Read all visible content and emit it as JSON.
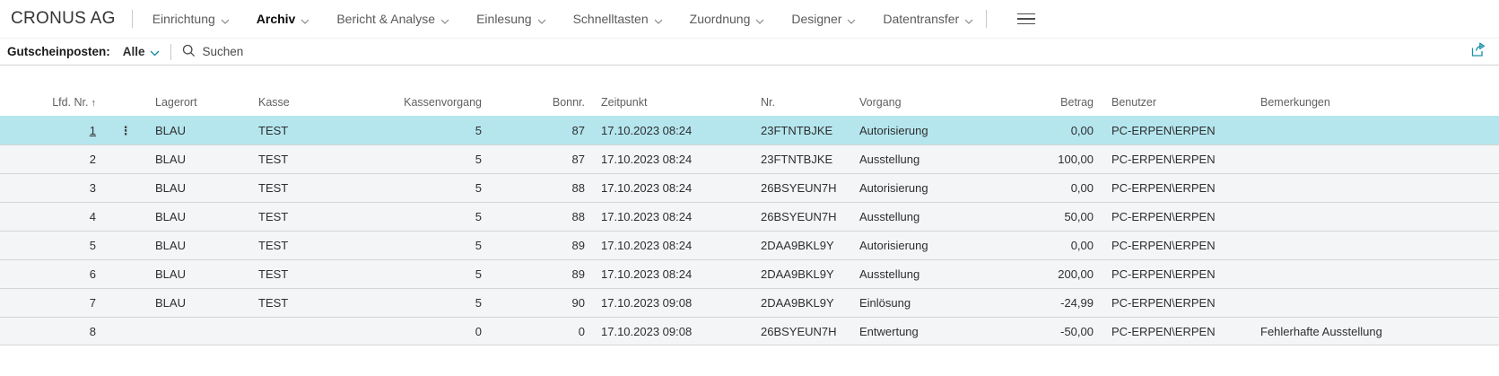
{
  "app": {
    "company_name": "CRONUS AG"
  },
  "menu": {
    "items": [
      {
        "label": "Einrichtung",
        "active": false
      },
      {
        "label": "Archiv",
        "active": true
      },
      {
        "label": "Bericht & Analyse",
        "active": false
      },
      {
        "label": "Einlesung",
        "active": false
      },
      {
        "label": "Schnelltasten",
        "active": false
      },
      {
        "label": "Zuordnung",
        "active": false
      },
      {
        "label": "Designer",
        "active": false
      },
      {
        "label": "Datentransfer",
        "active": false
      }
    ]
  },
  "filter_bar": {
    "caption": "Gutscheinposten:",
    "filter_value": "Alle",
    "search_label": "Suchen"
  },
  "table": {
    "columns": [
      {
        "key": "lfd_nr",
        "label": "Lfd. Nr.",
        "align": "r",
        "sorted": "asc"
      },
      {
        "key": "row_menu",
        "label": "",
        "align": "c"
      },
      {
        "key": "lagerort",
        "label": "Lagerort",
        "align": "l"
      },
      {
        "key": "kasse",
        "label": "Kasse",
        "align": "l"
      },
      {
        "key": "kassenvorgang",
        "label": "Kassenvorgang",
        "align": "r"
      },
      {
        "key": "bonnr",
        "label": "Bonnr.",
        "align": "r"
      },
      {
        "key": "zeitpunkt",
        "label": "Zeitpunkt",
        "align": "l"
      },
      {
        "key": "nr",
        "label": "Nr.",
        "align": "l"
      },
      {
        "key": "vorgang",
        "label": "Vorgang",
        "align": "l"
      },
      {
        "key": "betrag",
        "label": "Betrag",
        "align": "r"
      },
      {
        "key": "benutzer",
        "label": "Benutzer",
        "align": "l"
      },
      {
        "key": "bemerkungen",
        "label": "Bemerkungen",
        "align": "l"
      }
    ],
    "rows": [
      {
        "selected": true,
        "lfd_nr": "1",
        "lagerort": "BLAU",
        "kasse": "TEST",
        "kassenvorgang": "5",
        "bonnr": "87",
        "zeitpunkt": "17.10.2023 08:24",
        "nr": "23FTNTBJKE",
        "vorgang": "Autorisierung",
        "betrag": "0,00",
        "benutzer": "PC-ERPEN\\ERPEN",
        "bemerkungen": ""
      },
      {
        "selected": false,
        "lfd_nr": "2",
        "lagerort": "BLAU",
        "kasse": "TEST",
        "kassenvorgang": "5",
        "bonnr": "87",
        "zeitpunkt": "17.10.2023 08:24",
        "nr": "23FTNTBJKE",
        "vorgang": "Ausstellung",
        "betrag": "100,00",
        "benutzer": "PC-ERPEN\\ERPEN",
        "bemerkungen": ""
      },
      {
        "selected": false,
        "lfd_nr": "3",
        "lagerort": "BLAU",
        "kasse": "TEST",
        "kassenvorgang": "5",
        "bonnr": "88",
        "zeitpunkt": "17.10.2023 08:24",
        "nr": "26BSYEUN7H",
        "vorgang": "Autorisierung",
        "betrag": "0,00",
        "benutzer": "PC-ERPEN\\ERPEN",
        "bemerkungen": ""
      },
      {
        "selected": false,
        "lfd_nr": "4",
        "lagerort": "BLAU",
        "kasse": "TEST",
        "kassenvorgang": "5",
        "bonnr": "88",
        "zeitpunkt": "17.10.2023 08:24",
        "nr": "26BSYEUN7H",
        "vorgang": "Ausstellung",
        "betrag": "50,00",
        "benutzer": "PC-ERPEN\\ERPEN",
        "bemerkungen": ""
      },
      {
        "selected": false,
        "lfd_nr": "5",
        "lagerort": "BLAU",
        "kasse": "TEST",
        "kassenvorgang": "5",
        "bonnr": "89",
        "zeitpunkt": "17.10.2023 08:24",
        "nr": "2DAA9BKL9Y",
        "vorgang": "Autorisierung",
        "betrag": "0,00",
        "benutzer": "PC-ERPEN\\ERPEN",
        "bemerkungen": ""
      },
      {
        "selected": false,
        "lfd_nr": "6",
        "lagerort": "BLAU",
        "kasse": "TEST",
        "kassenvorgang": "5",
        "bonnr": "89",
        "zeitpunkt": "17.10.2023 08:24",
        "nr": "2DAA9BKL9Y",
        "vorgang": "Ausstellung",
        "betrag": "200,00",
        "benutzer": "PC-ERPEN\\ERPEN",
        "bemerkungen": ""
      },
      {
        "selected": false,
        "lfd_nr": "7",
        "lagerort": "BLAU",
        "kasse": "TEST",
        "kassenvorgang": "5",
        "bonnr": "90",
        "zeitpunkt": "17.10.2023 09:08",
        "nr": "2DAA9BKL9Y",
        "vorgang": "Einlösung",
        "betrag": "-24,99",
        "benutzer": "PC-ERPEN\\ERPEN",
        "bemerkungen": ""
      },
      {
        "selected": false,
        "lfd_nr": "8",
        "lagerort": "",
        "kasse": "",
        "kassenvorgang": "0",
        "bonnr": "0",
        "zeitpunkt": "17.10.2023 09:08",
        "nr": "26BSYEUN7H",
        "vorgang": "Entwertung",
        "betrag": "-50,00",
        "benutzer": "PC-ERPEN\\ERPEN",
        "bemerkungen": "Fehlerhafte Ausstellung"
      }
    ]
  },
  "icons": {
    "sort_ascending": "↑",
    "row_menu_dots": "⋮"
  },
  "colors": {
    "accent_teal": "#1a8fa8",
    "selected_row": "#b5e6ee",
    "row_background": "#f4f5f7",
    "row_border": "#d5d5d5"
  }
}
